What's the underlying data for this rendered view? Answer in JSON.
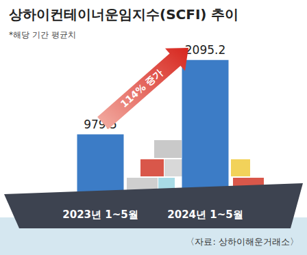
{
  "chart_data": {
    "type": "bar",
    "title": "상하이컨테이너운임지수(SCFI) 추이",
    "subtitle": "*해당 기간 평균치",
    "categories": [
      "2023년 1~5월",
      "2024년 1~5월"
    ],
    "values": [
      979.5,
      2095.2
    ],
    "color": "#3c7cc6",
    "ylim": [
      0,
      2400
    ],
    "data_labels": true,
    "tick_labels": "x",
    "annotations": [
      "114% 증가"
    ],
    "source": "〈자료: 상하이해운거래소〉"
  }
}
